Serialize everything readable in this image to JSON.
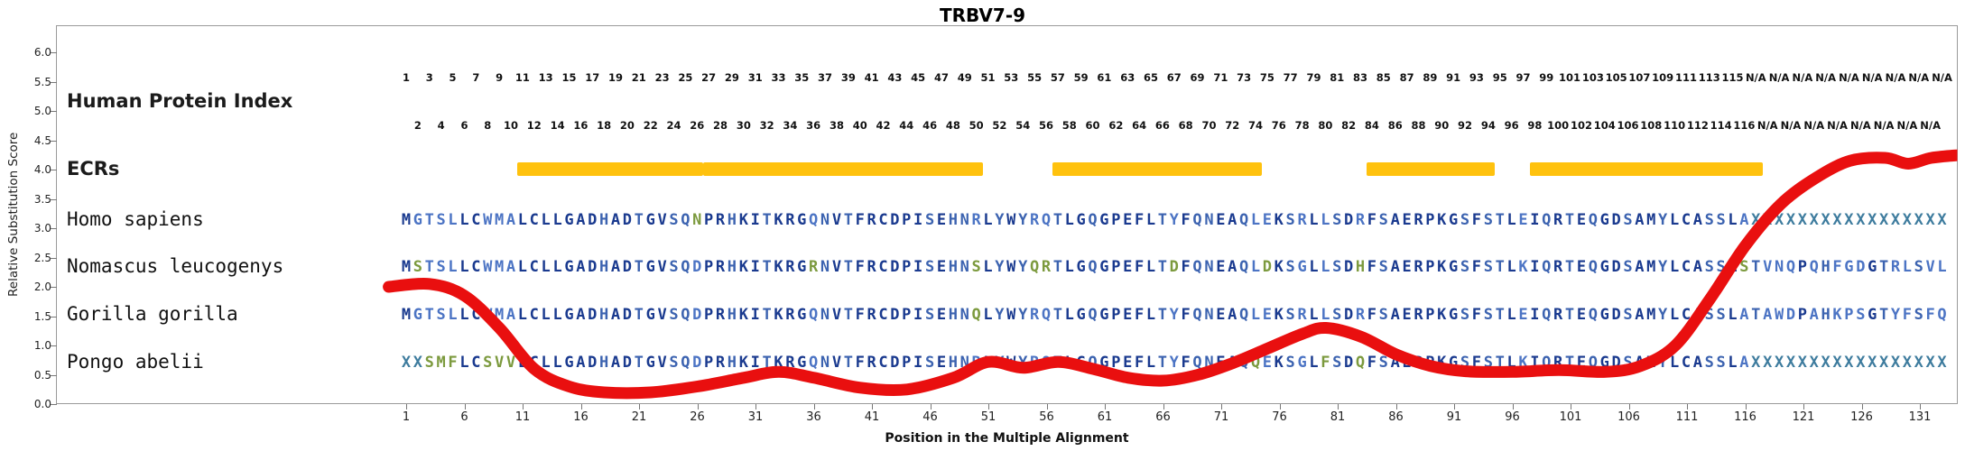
{
  "chart_data": {
    "type": "line",
    "title": "TRBV7-9",
    "xlabel": "Position in the Multiple Alignment",
    "ylabel": "Relative Substitution Score",
    "ylim": [
      0,
      6
    ],
    "ytick_step": 0.5,
    "xticks": [
      1,
      6,
      11,
      16,
      21,
      26,
      31,
      36,
      41,
      46,
      51,
      56,
      61,
      66,
      71,
      76,
      81,
      86,
      91,
      96,
      101,
      106,
      111,
      116,
      121,
      126,
      131
    ],
    "grid": false,
    "legend": "none",
    "alignment_length": 133,
    "human_protein_length": 116,
    "rows": {
      "index_label": "Human Protein Index",
      "ecr_label": "ECRs",
      "na_text": "N/A"
    },
    "ecr": {
      "color": "#FFC20E",
      "ranges": [
        [
          11,
          26
        ],
        [
          27,
          50
        ],
        [
          57,
          74
        ],
        [
          84,
          94
        ],
        [
          98,
          117
        ]
      ]
    },
    "species": [
      {
        "name": "Homo sapiens",
        "sequence": "MGTSLLCWMALCLLGADHADTGVSQNPRHKITKRGQNVTFRCDPISEHNRLYWYRQTLGQGPEFLTYFQNEAQLEKSRLLSDRFSAERPKGSFSTLEIQRTEQGDSAMYLCASSLAXXXXXXXXXXXXXXXXX"
      },
      {
        "name": "Nomascus leucogenys",
        "sequence": "MSTSLLCWMALCLLGADHADTGVSQDPRHKITKRGRNVTFRCDPISEHNSLYWYQRTLGQGPEFLTDFQNEAQLDKSGLLSDHFSAERPKGSFSTLKIQRTEQGDSAMYLCASSLSTVNQPQHFGDGTRLSVL"
      },
      {
        "name": "Gorilla gorilla",
        "sequence": "MGTSLLCWMALCLLGADHADTGVSQDPRHKITKRGQNVTFRCDPISEHNQLYWYRQTLGQGPEFLTYFQNEAQLEKSRLLSDRFSAERPKGSFSTLEIQRTEQGDSAMYLCASSLATAWDPAHKPSGTYFSFQ"
      },
      {
        "name": "Pongo abelii",
        "sequence": "XXSMFLCSVVLCLLGADHADTGVSQDPRHKITKRGQNVTFRCDPISEHNRLYWYRQTLGQGPEFLTYFQNEAQQEKSGLFSDQFSAERPKGSFSTLKIQRTEQGDSAMYLCASSLAXXXXXXXXXXXXXXXXX"
      }
    ],
    "seq_colors": {
      "conserved": "#1A3A8F",
      "conserved_polar": "#3C63B0",
      "majority": "#4C74C4",
      "minority": "#7C9A3E",
      "unknown_x": "#3E7C9E"
    },
    "series": [
      {
        "name": "Relative Substitution Score",
        "type": "line",
        "color": "#E90F0F",
        "x": [
          -0.5,
          3,
          6,
          9,
          12,
          15,
          18,
          22,
          26,
          30,
          33,
          36,
          40,
          44,
          48,
          51,
          54,
          57,
          60,
          63,
          66,
          69,
          72,
          75,
          78,
          80,
          83,
          86,
          89,
          92,
          96,
          100,
          104,
          107,
          110,
          113,
          116,
          119,
          122,
          125,
          128,
          130,
          132,
          134.5
        ],
        "y": [
          2.0,
          2.05,
          1.85,
          1.3,
          0.6,
          0.3,
          0.2,
          0.2,
          0.3,
          0.45,
          0.55,
          0.45,
          0.28,
          0.25,
          0.45,
          0.72,
          0.62,
          0.72,
          0.6,
          0.45,
          0.4,
          0.5,
          0.7,
          0.95,
          1.2,
          1.3,
          1.15,
          0.85,
          0.65,
          0.56,
          0.55,
          0.58,
          0.55,
          0.65,
          1.0,
          1.8,
          2.7,
          3.4,
          3.85,
          4.15,
          4.2,
          4.1,
          4.2,
          4.25
        ]
      }
    ]
  }
}
